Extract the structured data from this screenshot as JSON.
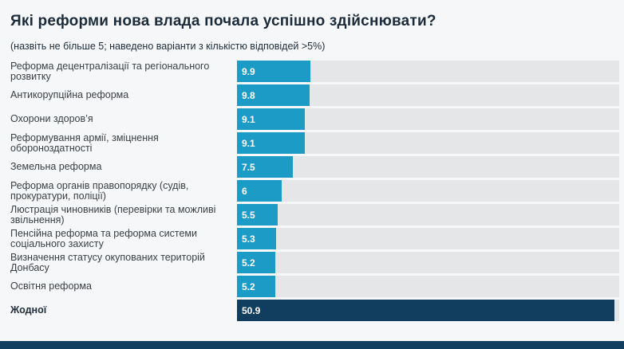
{
  "chart_data": {
    "type": "bar",
    "orientation": "horizontal",
    "title": "Які реформи нова влада почала успішно здійснювати?",
    "subtitle": "(назвіть не більше 5; наведено варіанти з кількістю відповідей >5%)",
    "categories": [
      "Реформа децентралізації та регіонального розвитку",
      "Антикорупційна реформа",
      "Охорони здоров’я",
      "Реформування армії, зміцнення обороноздатності",
      "Земельна реформа",
      "Реформа органів правопорядку (судів, прокуратури, поліції)",
      "Люстрація чиновників (перевірки та можливі звільнення)",
      "Пенсійна реформа та реформа системи соціального захисту",
      "Визначення статусу окупованих територій Донбасу",
      "Освітня реформа",
      "Жодної"
    ],
    "values": [
      9.9,
      9.8,
      9.1,
      9.1,
      7.5,
      6,
      5.5,
      5.3,
      5.2,
      5.2,
      50.9
    ],
    "value_labels": [
      "9.9",
      "9.8",
      "9.1",
      "9.1",
      "7.5",
      "6",
      "5.5",
      "5.3",
      "5.2",
      "5.2",
      "50.9"
    ],
    "highlight_index": 10,
    "xlim": [
      0,
      51.5
    ],
    "legend": "none",
    "grid": "off",
    "bar_color": "#1d9bc7",
    "highlight_color": "#113e5f",
    "track_color": "#e5e6e7",
    "footer_color": "#113e5f",
    "background_color": "#f6f7f8"
  }
}
